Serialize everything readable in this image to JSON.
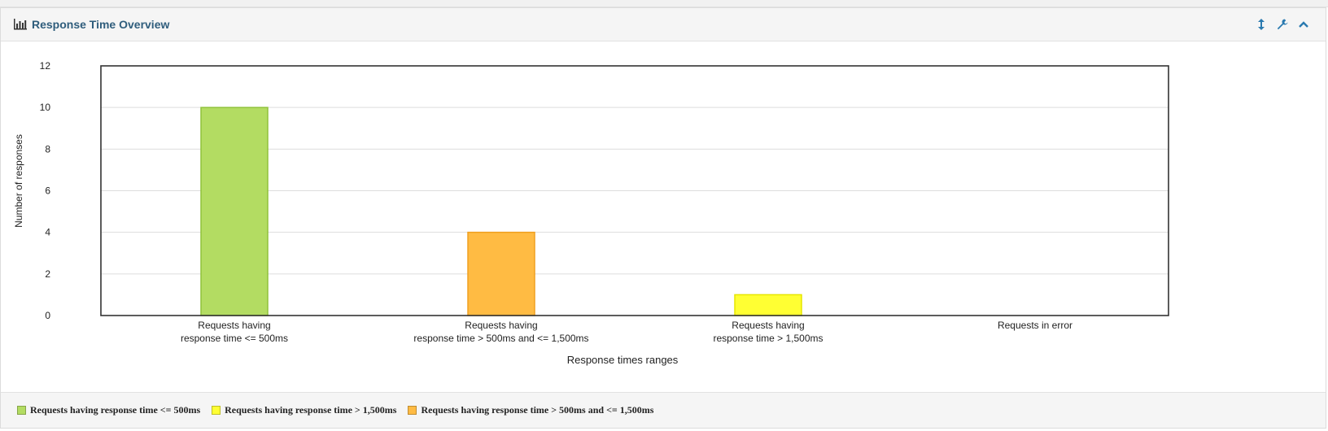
{
  "widget": {
    "title": "Response Time Overview",
    "toolbar": {
      "resize_icon": "resize-vertical-icon",
      "settings_icon": "wrench-icon",
      "collapse_icon": "chevron-up-icon"
    }
  },
  "colors": {
    "title": "#2f5d7c",
    "green": "#b3dc62",
    "green_border": "#90c23a",
    "orange": "#ffbb43",
    "orange_border": "#f0a020",
    "yellow": "#ffff33",
    "yellow_border": "#e6e600"
  },
  "chart_data": {
    "type": "bar",
    "title": "",
    "xlabel": "Response times ranges",
    "ylabel": "Number of responses",
    "ylim": [
      0,
      12
    ],
    "yticks": [
      "0",
      "2",
      "4",
      "6",
      "8",
      "10",
      "12"
    ],
    "grid": true,
    "categories": [
      {
        "line1": "Requests having",
        "line2": "response time <= 500ms"
      },
      {
        "line1": "Requests having",
        "line2": "response time > 500ms and <= 1,500ms"
      },
      {
        "line1": "Requests having",
        "line2": "response time > 1,500ms"
      },
      {
        "line1": "Requests in error",
        "line2": ""
      }
    ],
    "values": [
      10,
      4,
      1,
      0
    ],
    "bar_colors": [
      "#b3dc62",
      "#ffbb43",
      "#ffff33",
      "#ff6f6f"
    ],
    "bar_borders": [
      "#90c23a",
      "#f0a020",
      "#e6e600",
      "#e04040"
    ],
    "legend_position": "bottom",
    "legend": [
      {
        "label": "Requests having response time <= 500ms",
        "color": "#b3dc62"
      },
      {
        "label": "Requests having response time > 1,500ms",
        "color": "#ffff33"
      },
      {
        "label": "Requests having response time > 500ms and <= 1,500ms",
        "color": "#ffbb43"
      }
    ]
  }
}
